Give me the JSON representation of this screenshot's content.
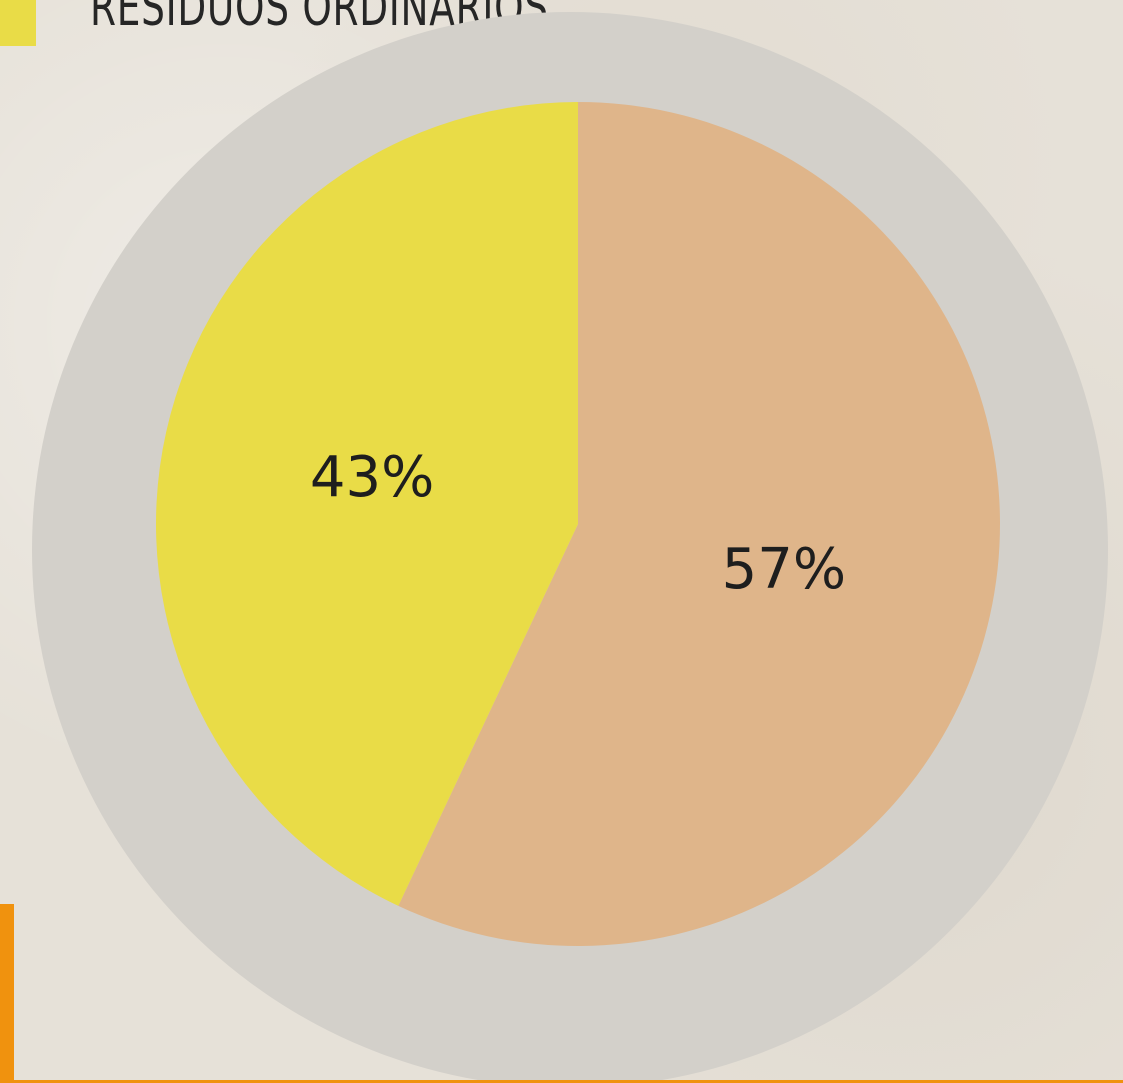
{
  "legend": {
    "label": "RESIDUOS ORDINARIOS",
    "swatch_color": "#e9dc47"
  },
  "colors": {
    "ring": "#d3d0ca",
    "accent_bar": "#f0920e"
  },
  "chart_data": {
    "type": "pie",
    "title": "",
    "slices": [
      {
        "label": "57%",
        "value": 57,
        "color": "#dfb58a"
      },
      {
        "label": "43%",
        "value": 43,
        "color": "#e9dc47"
      }
    ]
  }
}
